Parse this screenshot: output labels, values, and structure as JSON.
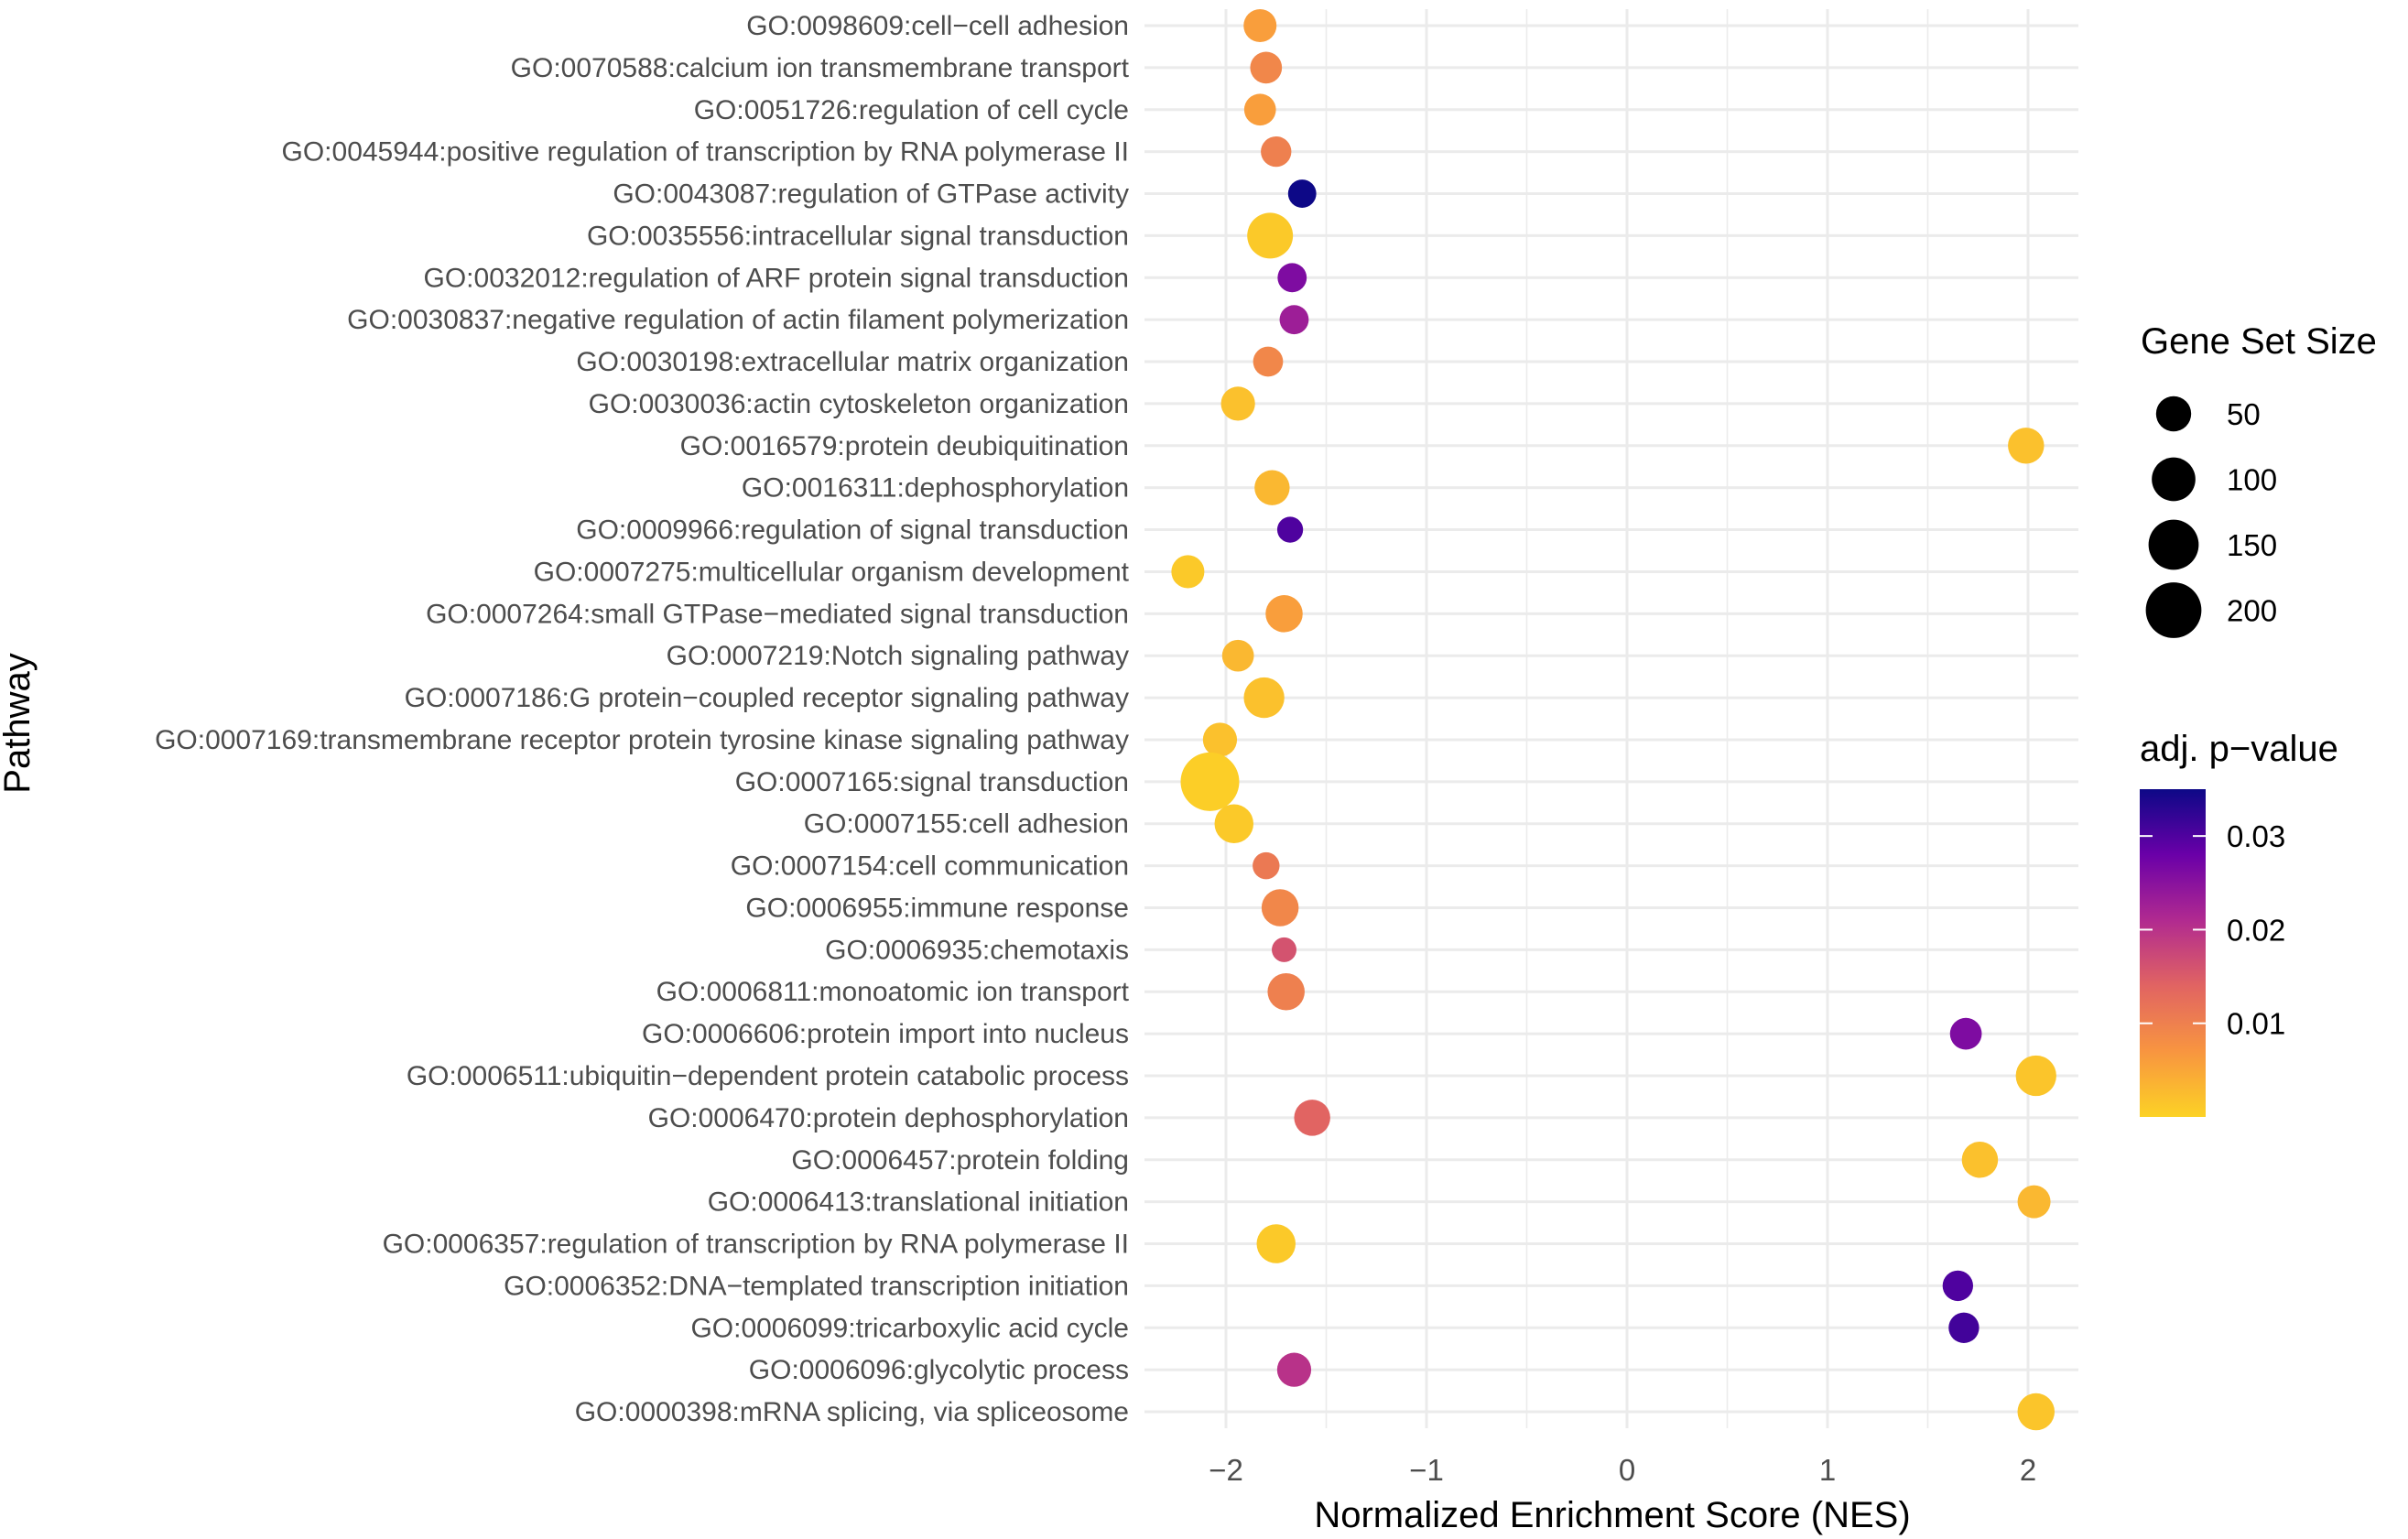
{
  "chart_data": {
    "type": "scatter",
    "title": "",
    "xlabel": "Normalized Enrichment Score (NES)",
    "ylabel": "Pathway",
    "xlim": [
      -2.45,
      2.25
    ],
    "x_ticks": [
      {
        "value": -2,
        "label": "−2"
      },
      {
        "value": -1,
        "label": "−1"
      },
      {
        "value": 0,
        "label": "0"
      },
      {
        "value": 1,
        "label": "1"
      },
      {
        "value": 2,
        "label": "2"
      }
    ],
    "grid": true,
    "points": [
      {
        "pathway": "GO:0098609:cell−cell adhesion",
        "nes": -1.83,
        "size": 40,
        "padj": 0.006
      },
      {
        "pathway": "GO:0070588:calcium ion transmembrane transport",
        "nes": -1.8,
        "size": 35,
        "padj": 0.009
      },
      {
        "pathway": "GO:0051726:regulation of cell cycle",
        "nes": -1.83,
        "size": 35,
        "padj": 0.006
      },
      {
        "pathway": "GO:0045944:positive regulation of transcription by RNA polymerase II",
        "nes": -1.75,
        "size": 30,
        "padj": 0.01
      },
      {
        "pathway": "GO:0043087:regulation of GTPase activity",
        "nes": -1.62,
        "size": 22,
        "padj": 0.035
      },
      {
        "pathway": "GO:0035556:intracellular signal transduction",
        "nes": -1.78,
        "size": 115,
        "padj": 0.001
      },
      {
        "pathway": "GO:0032012:regulation of ARF protein signal transduction",
        "nes": -1.67,
        "size": 25,
        "padj": 0.026
      },
      {
        "pathway": "GO:0030837:negative regulation of actin filament polymerization",
        "nes": -1.66,
        "size": 25,
        "padj": 0.023
      },
      {
        "pathway": "GO:0030198:extracellular matrix organization",
        "nes": -1.79,
        "size": 28,
        "padj": 0.009
      },
      {
        "pathway": "GO:0030036:actin cytoskeleton organization",
        "nes": -1.94,
        "size": 45,
        "padj": 0.002
      },
      {
        "pathway": "GO:0016579:protein deubiquitination",
        "nes": 1.99,
        "size": 55,
        "padj": 0.002
      },
      {
        "pathway": "GO:0016311:dephosphorylation",
        "nes": -1.77,
        "size": 50,
        "padj": 0.003
      },
      {
        "pathway": "GO:0009966:regulation of signal transduction",
        "nes": -1.68,
        "size": 15,
        "padj": 0.03
      },
      {
        "pathway": "GO:0007275:multicellular organism development",
        "nes": -2.19,
        "size": 40,
        "padj": 0.001
      },
      {
        "pathway": "GO:0007264:small GTPase−mediated signal transduction",
        "nes": -1.71,
        "size": 60,
        "padj": 0.006
      },
      {
        "pathway": "GO:0007219:Notch signaling pathway",
        "nes": -1.94,
        "size": 35,
        "padj": 0.003
      },
      {
        "pathway": "GO:0007186:G protein−coupled receptor signaling pathway",
        "nes": -1.81,
        "size": 80,
        "padj": 0.002
      },
      {
        "pathway": "GO:0007169:transmembrane receptor protein tyrosine kinase signaling pathway",
        "nes": -2.03,
        "size": 45,
        "padj": 0.002
      },
      {
        "pathway": "GO:0007165:signal transduction",
        "nes": -2.08,
        "size": 230,
        "padj": 0.0005
      },
      {
        "pathway": "GO:0007155:cell adhesion",
        "nes": -1.96,
        "size": 70,
        "padj": 0.001
      },
      {
        "pathway": "GO:0007154:cell communication",
        "nes": -1.8,
        "size": 18,
        "padj": 0.011
      },
      {
        "pathway": "GO:0006955:immune response",
        "nes": -1.73,
        "size": 60,
        "padj": 0.009
      },
      {
        "pathway": "GO:0006935:chemotaxis",
        "nes": -1.71,
        "size": 12,
        "padj": 0.016
      },
      {
        "pathway": "GO:0006811:monoatomic ion transport",
        "nes": -1.7,
        "size": 60,
        "padj": 0.01
      },
      {
        "pathway": "GO:0006606:protein import into nucleus",
        "nes": 1.69,
        "size": 35,
        "padj": 0.026
      },
      {
        "pathway": "GO:0006511:ubiquitin−dependent protein catabolic process",
        "nes": 2.04,
        "size": 80,
        "padj": 0.0015
      },
      {
        "pathway": "GO:0006470:protein dephosphorylation",
        "nes": -1.57,
        "size": 55,
        "padj": 0.014
      },
      {
        "pathway": "GO:0006457:protein folding",
        "nes": 1.76,
        "size": 55,
        "padj": 0.002
      },
      {
        "pathway": "GO:0006413:translational initiation",
        "nes": 2.03,
        "size": 40,
        "padj": 0.003
      },
      {
        "pathway": "GO:0006357:regulation of transcription by RNA polymerase II",
        "nes": -1.75,
        "size": 70,
        "padj": 0.001
      },
      {
        "pathway": "GO:0006352:DNA−templated transcription initiation",
        "nes": 1.65,
        "size": 30,
        "padj": 0.03
      },
      {
        "pathway": "GO:0006099:tricarboxylic acid cycle",
        "nes": 1.68,
        "size": 30,
        "padj": 0.031
      },
      {
        "pathway": "GO:0006096:glycolytic process",
        "nes": -1.66,
        "size": 45,
        "padj": 0.02
      },
      {
        "pathway": "GO:0000398:mRNA splicing, via spliceosome",
        "nes": 2.04,
        "size": 60,
        "padj": 0.0015
      }
    ],
    "legend_size": {
      "title": "Gene Set Size",
      "entries": [
        {
          "value": 50,
          "label": "50"
        },
        {
          "value": 100,
          "label": "100"
        },
        {
          "value": 150,
          "label": "150"
        },
        {
          "value": 200,
          "label": "200"
        }
      ]
    },
    "legend_color": {
      "title": "adj. p−value",
      "range": [
        0.0,
        0.035
      ],
      "ticks": [
        {
          "value": 0.03,
          "label": "0.03"
        },
        {
          "value": 0.02,
          "label": "0.02"
        },
        {
          "value": 0.01,
          "label": "0.01"
        }
      ],
      "palette": [
        "#fcd225",
        "#f89540",
        "#e16462",
        "#b12a90",
        "#6a00a8",
        "#0d0887"
      ]
    },
    "grid_color": "#ebebeb"
  }
}
